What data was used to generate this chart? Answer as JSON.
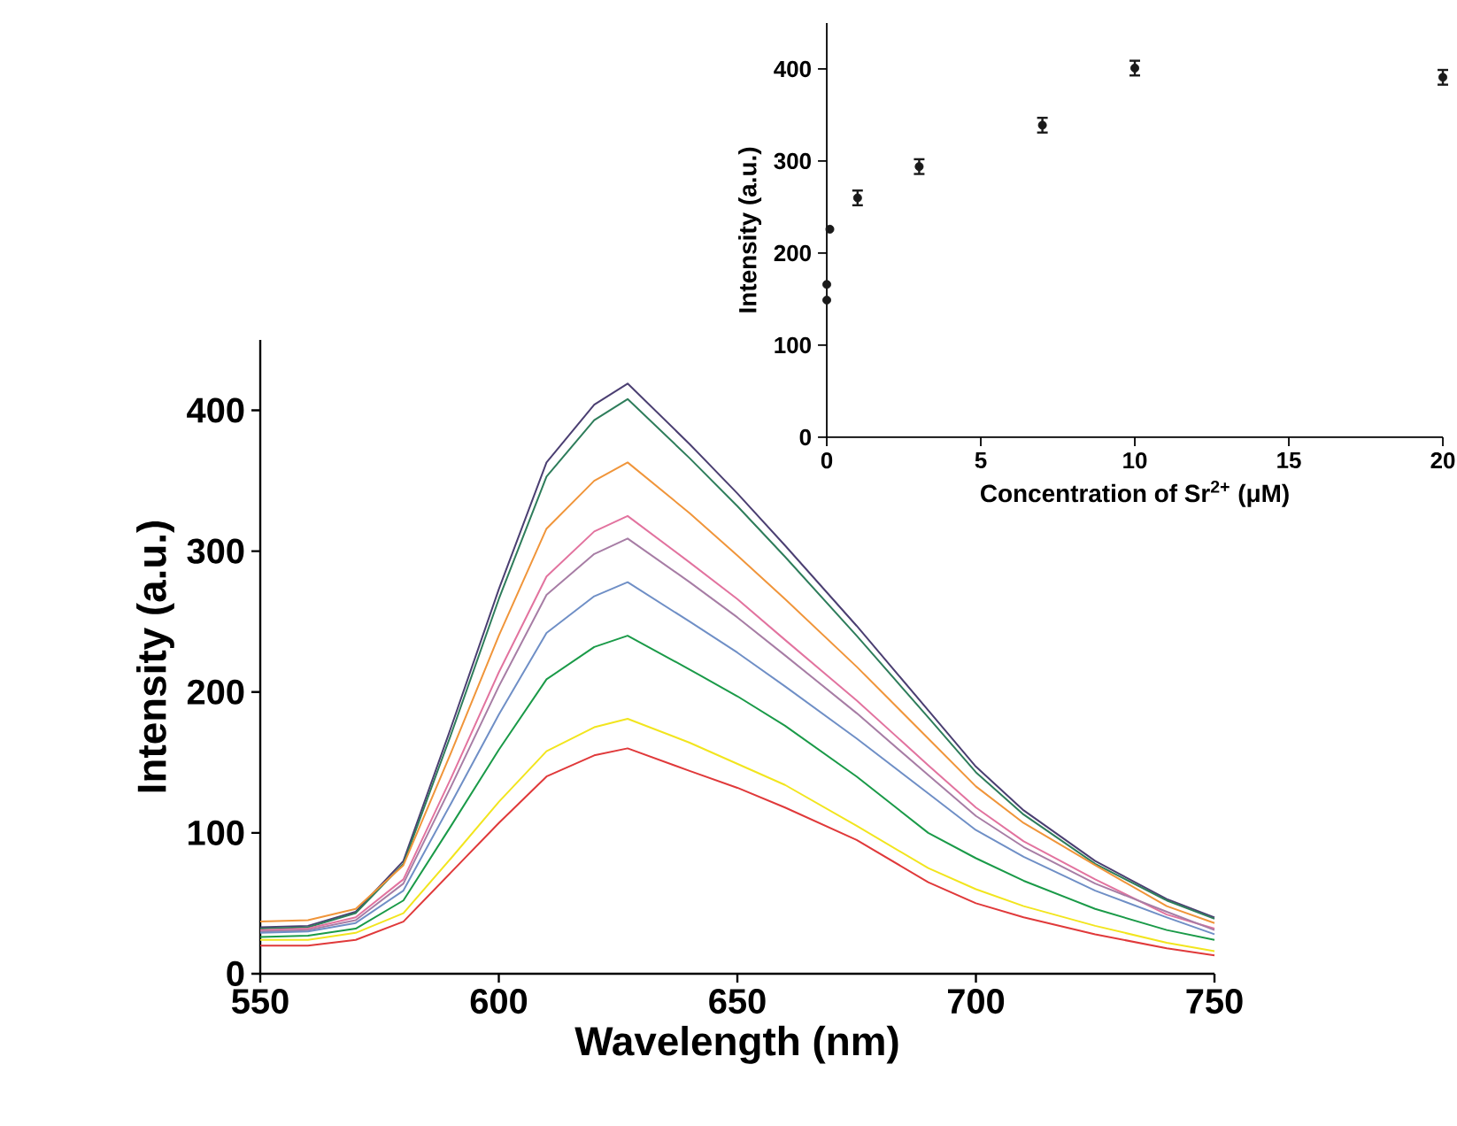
{
  "chart_data": [
    {
      "type": "line",
      "xlabel": "Wavelength (nm)",
      "ylabel": "Intensity (a.u.)",
      "x": [
        550,
        560,
        570,
        580,
        590,
        600,
        610,
        620,
        627,
        640,
        650,
        660,
        675,
        690,
        700,
        710,
        725,
        740,
        750
      ],
      "xlim": [
        550,
        750
      ],
      "ylim": [
        0,
        450
      ],
      "xticks": [
        550,
        600,
        650,
        700,
        750
      ],
      "yticks": [
        0,
        100,
        200,
        300,
        400
      ],
      "marker": "none",
      "series": [
        {
          "color": "#4b3f72",
          "values": [
            33,
            34,
            44,
            80,
            175,
            273,
            363,
            404,
            419,
            376,
            341,
            304,
            247,
            187,
            147,
            116,
            80,
            53,
            40
          ]
        },
        {
          "color": "#2e7d5b",
          "values": [
            32,
            33,
            43,
            78,
            170,
            266,
            353,
            393,
            408,
            366,
            332,
            296,
            240,
            182,
            143,
            113,
            78,
            52,
            39
          ]
        },
        {
          "color": "#f0953a",
          "values": [
            37,
            38,
            46,
            77,
            157,
            240,
            316,
            350,
            363,
            327,
            297,
            266,
            218,
            167,
            133,
            107,
            77,
            48,
            36
          ]
        },
        {
          "color": "#e2739f",
          "values": [
            31,
            32,
            40,
            67,
            139,
            214,
            282,
            314,
            325,
            292,
            266,
            237,
            194,
            148,
            118,
            94,
            67,
            42,
            32
          ]
        },
        {
          "color": "#a77da5",
          "values": [
            30,
            31,
            38,
            64,
            133,
            204,
            269,
            298,
            309,
            278,
            253,
            226,
            185,
            141,
            112,
            90,
            64,
            44,
            31
          ]
        },
        {
          "color": "#6f8fc6",
          "values": [
            29,
            30,
            36,
            59,
            121,
            184,
            242,
            268,
            278,
            250,
            228,
            204,
            167,
            128,
            102,
            83,
            59,
            40,
            28
          ]
        },
        {
          "color": "#1a9a48",
          "values": [
            26,
            27,
            32,
            52,
            105,
            159,
            209,
            232,
            240,
            216,
            197,
            176,
            140,
            100,
            82,
            66,
            46,
            31,
            24
          ]
        },
        {
          "color": "#f2e51e",
          "values": [
            24,
            24,
            29,
            43,
            82,
            122,
            158,
            175,
            181,
            164,
            149,
            134,
            105,
            75,
            60,
            48,
            34,
            22,
            16
          ]
        },
        {
          "color": "#e0393a",
          "values": [
            20,
            20,
            24,
            37,
            72,
            107,
            140,
            155,
            160,
            144,
            132,
            118,
            95,
            65,
            50,
            40,
            28,
            18,
            13
          ]
        }
      ]
    },
    {
      "type": "scatter",
      "xlabel": "Concentration of Sr$^{2+}$ (μM)",
      "ylabel": "Intensity (a.u.)",
      "xlim": [
        0,
        20
      ],
      "ylim": [
        0,
        450
      ],
      "xticks": [
        0,
        5,
        10,
        15,
        20
      ],
      "yticks": [
        0,
        100,
        200,
        300,
        400
      ],
      "marker": "circle",
      "series": [
        {
          "color": "#1a1a1a",
          "x": [
            0,
            0,
            0.1,
            1,
            3,
            7,
            10,
            20
          ],
          "values": [
            149,
            166,
            226,
            260,
            294,
            339,
            401,
            391
          ],
          "errors": [
            null,
            null,
            null,
            8,
            8,
            8,
            8,
            8
          ]
        }
      ]
    }
  ]
}
